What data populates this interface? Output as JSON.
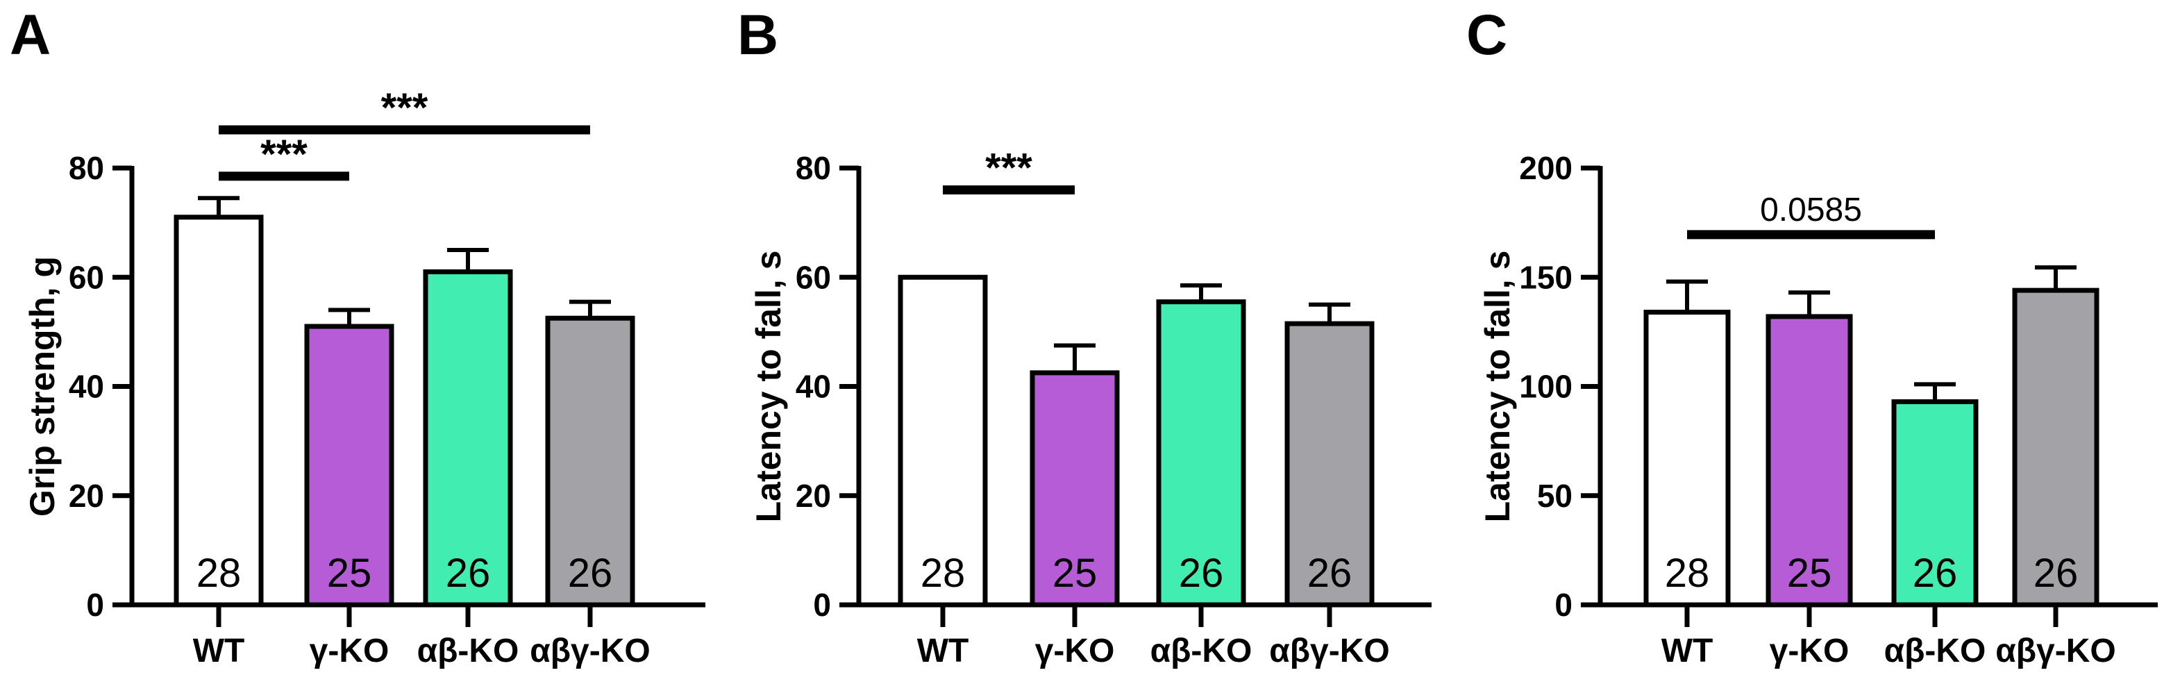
{
  "figure_background": "#FFFFFF",
  "text_color": "#000000",
  "chart_data": [
    {
      "type": "bar",
      "panel_label": "A",
      "ylabel": "Grip strength, g",
      "ylim": [
        0,
        80
      ],
      "yticks": [
        0,
        20,
        40,
        60,
        80
      ],
      "categories": [
        "WT",
        "γ-KO",
        "αβ-KO",
        "αβγ-KO"
      ],
      "values": [
        71,
        51,
        61,
        52.5
      ],
      "errors_sem": [
        3.5,
        3,
        4,
        3
      ],
      "n_labels": [
        "28",
        "25",
        "26",
        "26"
      ],
      "bar_colors": [
        "#FFFFFF",
        "#B55CD6",
        "#41EDB0",
        "#A2A2A7"
      ],
      "bar_border_color": "#000000",
      "grid": false,
      "significance": [
        {
          "group1": "WT",
          "group2": "γ-KO",
          "label": "***",
          "bracket_y": 78.5
        },
        {
          "group1": "WT",
          "group2": "αβγ-KO",
          "label": "***",
          "bracket_y": 87
        }
      ]
    },
    {
      "type": "bar",
      "panel_label": "B",
      "ylabel": "Latency to fall, s",
      "ylim": [
        0,
        80
      ],
      "yticks": [
        0,
        20,
        40,
        60,
        80
      ],
      "categories": [
        "WT",
        "γ-KO",
        "αβ-KO",
        "αβγ-KO"
      ],
      "values": [
        60,
        42.5,
        55.5,
        51.5
      ],
      "errors_sem": [
        0,
        5,
        3,
        3.5
      ],
      "n_labels": [
        "28",
        "25",
        "26",
        "26"
      ],
      "bar_colors": [
        "#FFFFFF",
        "#B55CD6",
        "#41EDB0",
        "#A2A2A7"
      ],
      "bar_border_color": "#000000",
      "grid": false,
      "significance": [
        {
          "group1": "WT",
          "group2": "γ-KO",
          "label": "***",
          "bracket_y": 76
        }
      ]
    },
    {
      "type": "bar",
      "panel_label": "C",
      "ylabel": "Latency to fall, s",
      "ylim": [
        0,
        200
      ],
      "yticks": [
        0,
        50,
        100,
        150,
        200
      ],
      "categories": [
        "WT",
        "γ-KO",
        "αβ-KO",
        "αβγ-KO"
      ],
      "values": [
        134,
        132,
        93,
        144
      ],
      "errors_sem": [
        14,
        11,
        8,
        10.5
      ],
      "n_labels": [
        "28",
        "25",
        "26",
        "26"
      ],
      "bar_colors": [
        "#FFFFFF",
        "#B55CD6",
        "#41EDB0",
        "#A2A2A7"
      ],
      "bar_border_color": "#000000",
      "grid": false,
      "significance": [
        {
          "group1": "WT",
          "group2": "αβ-KO",
          "label": "0.0585",
          "bracket_y": 169.5
        }
      ]
    }
  ]
}
